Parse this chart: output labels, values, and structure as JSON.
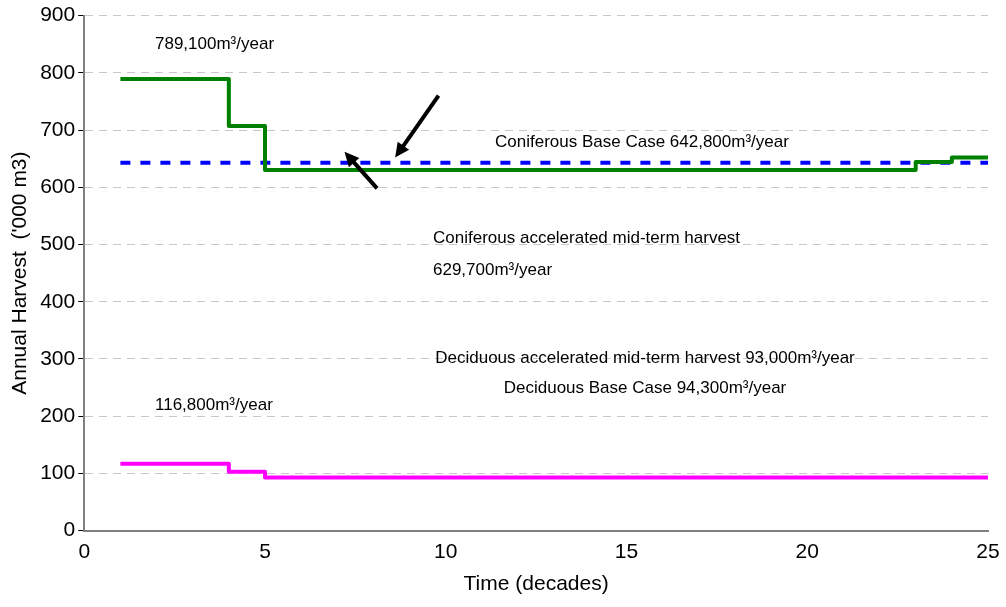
{
  "chart_data": {
    "type": "step",
    "xlabel": "Time (decades)",
    "ylabel": "Annual Harvest  ('000 m3)",
    "xlim": [
      0,
      25
    ],
    "xticks": [
      0,
      5,
      10,
      15,
      20,
      25
    ],
    "ylim": [
      0,
      900
    ],
    "yticks": [
      0,
      100,
      200,
      300,
      400,
      500,
      600,
      700,
      800,
      900
    ],
    "grid": "y",
    "legend": false,
    "marker": "none",
    "series": [
      {
        "type": "line",
        "color": "#0000ff",
        "line_style": "dashed",
        "x": [
          1,
          25
        ],
        "values": [
          643,
          643
        ]
      },
      {
        "color": "#008000",
        "x": [
          1,
          4,
          5,
          23,
          24,
          25
        ],
        "values": [
          789,
          707,
          630,
          644,
          652,
          652
        ]
      },
      {
        "color": "#ff00ff",
        "x": [
          1,
          4,
          5,
          25
        ],
        "values": [
          117,
          103,
          93,
          93
        ]
      }
    ],
    "annotations": [
      "789,100m³/year",
      "Coniferous Base Case 642,800m³/year",
      "Coniferous accelerated mid-term harvest",
      "629,700m³/year",
      "Deciduous accelerated mid-term harvest 93,000m³/year",
      "Deciduous Base Case 94,300m³/year",
      "116,800m³/year"
    ]
  }
}
